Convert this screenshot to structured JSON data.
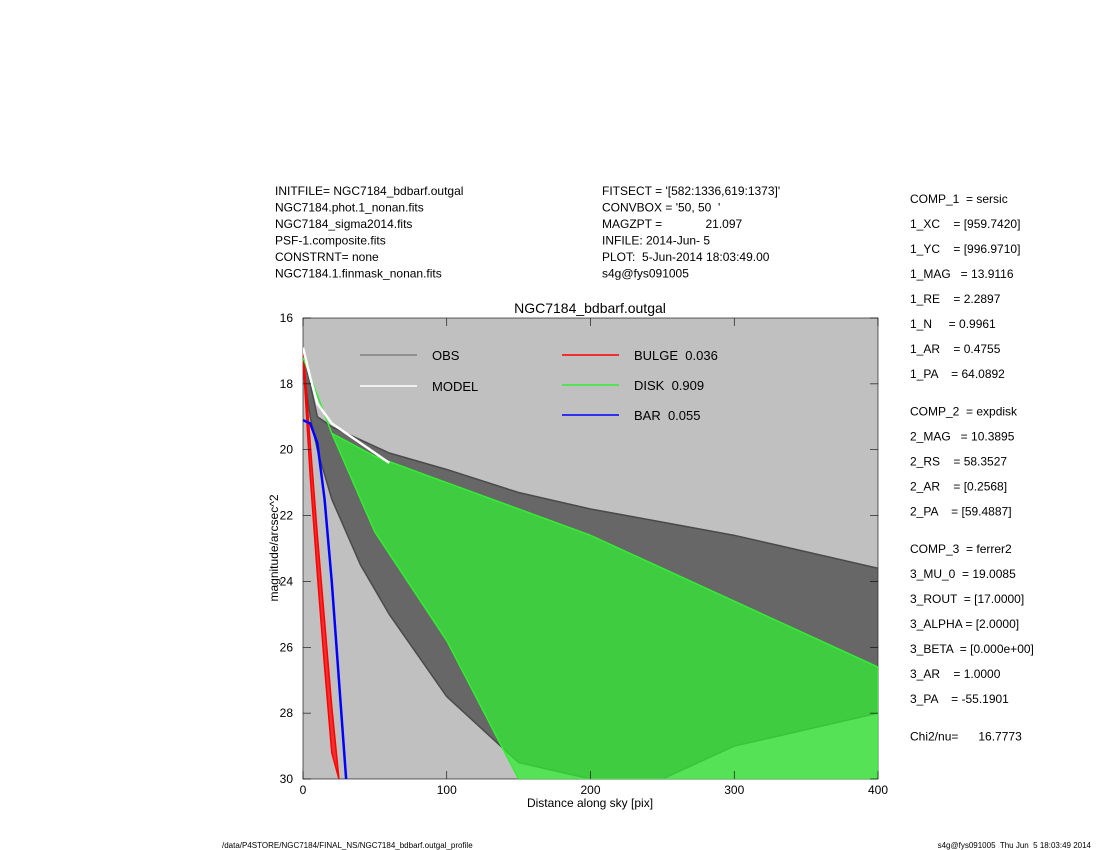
{
  "chart_data": {
    "type": "line",
    "title": "NGC7184_bdbarf.outgal",
    "x_label": "Distance along sky [pix]",
    "y_label": "magnitude/arcsec^2",
    "xlim": [
      0,
      400
    ],
    "ylim": [
      30,
      16
    ],
    "xticks": [
      0,
      100,
      200,
      300,
      400
    ],
    "yticks": [
      16,
      18,
      20,
      22,
      24,
      26,
      28,
      30
    ],
    "series": [
      {
        "name": "OBS",
        "color": "#4a4a4a",
        "x": [
          0,
          5,
          10,
          20,
          40,
          60,
          100,
          150,
          200,
          250,
          300,
          350,
          400
        ],
        "values": [
          17,
          18,
          19,
          19.3,
          19.7,
          20.1,
          20.6,
          21.3,
          21.8,
          22.2,
          22.6,
          23.1,
          23.6
        ],
        "values_low": [
          17.5,
          19,
          20,
          21.5,
          23.5,
          25,
          27.5,
          29.5,
          30,
          30,
          29,
          28.5,
          28
        ]
      },
      {
        "name": "MODEL",
        "color": "#ffffff",
        "x": [
          0,
          5,
          10,
          20,
          40,
          60
        ],
        "values": [
          16.9,
          17.8,
          18.6,
          19.2,
          19.8,
          20.4
        ]
      },
      {
        "name": "BULGE  0.036",
        "color": "#ff0000",
        "x": [
          0,
          5,
          10,
          15,
          20,
          25
        ],
        "values": [
          16.9,
          19.8,
          22.6,
          25.2,
          27.8,
          30
        ],
        "values_low": [
          17.2,
          20.8,
          23.8,
          26.6,
          29.2,
          30
        ]
      },
      {
        "name": "DISK  0.909",
        "color": "#33ee33",
        "x": [
          0,
          20,
          50,
          100,
          150,
          200,
          300,
          400
        ],
        "values": [
          17.2,
          19.5,
          20.2,
          21,
          21.8,
          22.6,
          24.6,
          26.6
        ],
        "values_low": [
          17.2,
          19.5,
          22.5,
          25.8,
          30,
          30,
          30,
          30
        ]
      },
      {
        "name": "BAR  0.055",
        "color": "#0000ff",
        "x": [
          0,
          5,
          10,
          15,
          20,
          25,
          30
        ],
        "values": [
          19.1,
          19.2,
          19.8,
          21.5,
          24,
          27,
          30
        ]
      }
    ]
  },
  "info_left": [
    "INITFILE= NGC7184_bdbarf.outgal",
    "NGC7184.phot.1_nonan.fits",
    "NGC7184_sigma2014.fits",
    "PSF-1.composite.fits",
    "CONSTRNT= none",
    "NGC7184.1.finmask_nonan.fits"
  ],
  "info_mid": [
    "FITSECT = '[582:1336,619:1373]'",
    "CONVBOX = '50, 50  '",
    "MAGZPT =             21.097",
    "INFILE: 2014-Jun- 5",
    "PLOT:  5-Jun-2014 18:03:49.00",
    "s4g@fys091005"
  ],
  "params": [
    [
      "COMP_1  = sersic",
      "1_XC    = [959.7420]",
      "1_YC    = [996.9710]",
      "1_MAG   = 13.9116",
      "1_RE    = 2.2897",
      "1_N     = 0.9961",
      "1_AR    = 0.4755",
      "1_PA    = 64.0892"
    ],
    [
      "COMP_2  = expdisk",
      "2_MAG   = 10.3895",
      "2_RS    = 58.3527",
      "2_AR    = [0.2568]",
      "2_PA    = [59.4887]"
    ],
    [
      "COMP_3  = ferrer2",
      "3_MU_0  = 19.0085",
      "3_ROUT  = [17.0000]",
      "3_ALPHA = [2.0000]",
      "3_BETA  = [0.000e+00]",
      "3_AR    = 1.0000",
      "3_PA    = -55.1901"
    ],
    [
      "Chi2/nu=      16.7773"
    ]
  ],
  "footer_left": "/data/P4STORE/NGC7184/FINAL_NS/NGC7184_bdbarf.outgal_profile",
  "footer_right": "s4g@fys091005  Thu Jun  5 18:03:49 2014"
}
